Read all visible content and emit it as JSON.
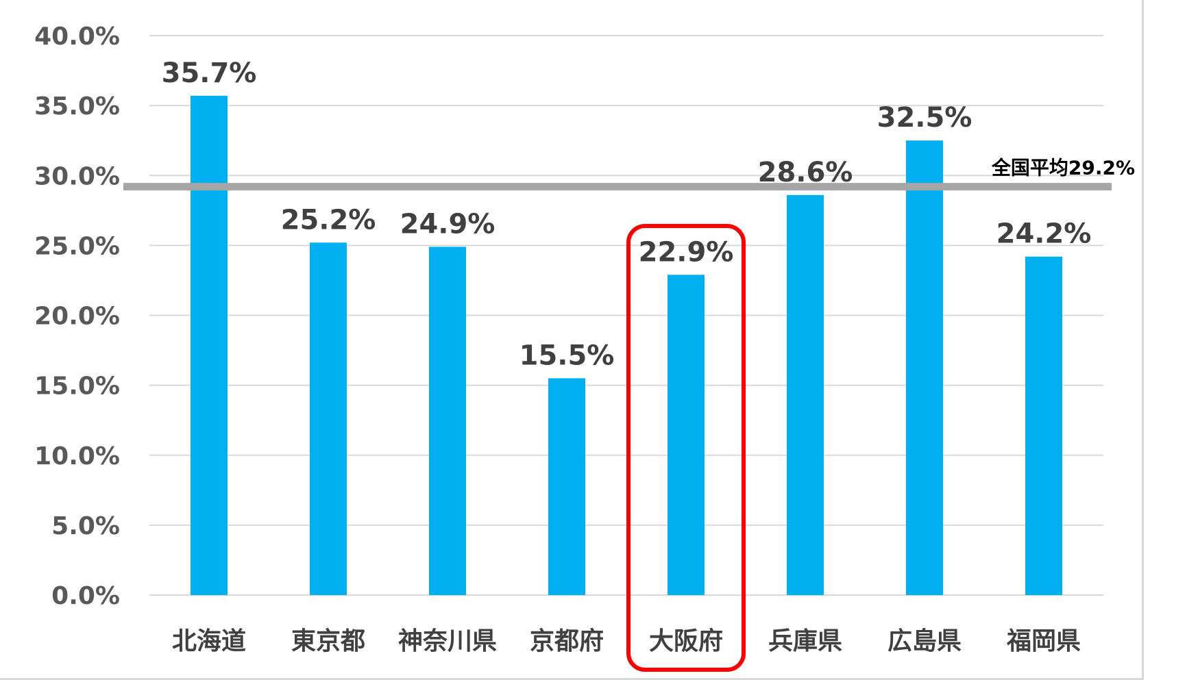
{
  "chart_data": {
    "type": "bar",
    "categories": [
      "北海道",
      "東京都",
      "神奈川県",
      "京都府",
      "大阪府",
      "兵庫県",
      "広島県",
      "福岡県"
    ],
    "values": [
      35.7,
      25.2,
      24.9,
      15.5,
      22.9,
      28.6,
      32.5,
      24.2
    ],
    "value_labels": [
      "35.7%",
      "25.2%",
      "24.9%",
      "15.5%",
      "22.9%",
      "28.6%",
      "32.5%",
      "24.2%"
    ],
    "y_ticks": [
      0,
      5,
      10,
      15,
      20,
      25,
      30,
      35,
      40
    ],
    "y_tick_labels": [
      "0.0%",
      "5.0%",
      "10.0%",
      "15.0%",
      "20.0%",
      "25.0%",
      "30.0%",
      "35.0%",
      "40.0%"
    ],
    "ylim": [
      0,
      40
    ],
    "grid": true,
    "reference_line": {
      "value": 29.2,
      "label": "全国平均29.2%"
    },
    "highlight": {
      "category": "大阪府"
    },
    "colors": {
      "bar": "#00b0f0",
      "gridline": "#d9d9d9",
      "reference_line": "#a6a6a6",
      "highlight_box": "#ff0000"
    }
  }
}
